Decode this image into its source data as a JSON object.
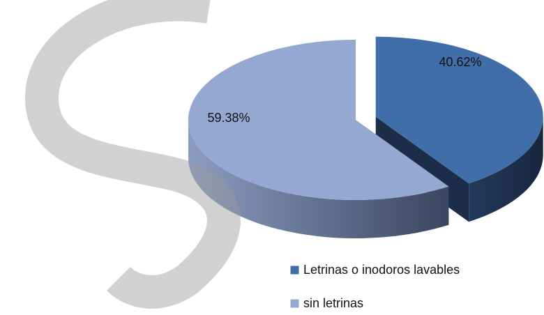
{
  "chart_data": {
    "type": "pie",
    "categories": [
      "Letrinas o inodoros lavables",
      "sin letrinas"
    ],
    "values": [
      40.62,
      59.38
    ],
    "value_labels": [
      "40.62%",
      "59.38%"
    ],
    "colors": [
      "#3f6ea8",
      "#94a8d2"
    ],
    "legend": "bottom-right"
  }
}
